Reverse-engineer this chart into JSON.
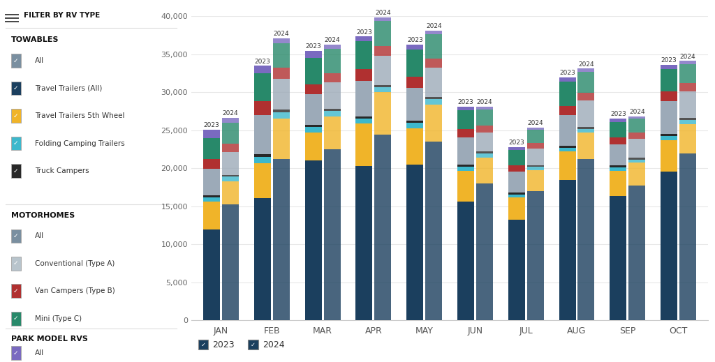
{
  "months": [
    "JAN",
    "FEB",
    "MAR",
    "APR",
    "MAY",
    "JUN",
    "JUL",
    "AUG",
    "SEP",
    "OCT"
  ],
  "segments": [
    {
      "name": "Travel Trailers (All)",
      "color": "#1b3f5e"
    },
    {
      "name": "Travel Trailers 5th Wheel",
      "color": "#f0b429"
    },
    {
      "name": "Folding Camping Trailers",
      "color": "#3db8cc"
    },
    {
      "name": "Truck Campers",
      "color": "#282828"
    },
    {
      "name": "Conventional (Type A)",
      "color": "#9caab8"
    },
    {
      "name": "Van Campers (Type B)",
      "color": "#b03030"
    },
    {
      "name": "Mini (Type C)",
      "color": "#28896a"
    },
    {
      "name": "Park Model RVs",
      "color": "#7a6ac0"
    }
  ],
  "data_2023": {
    "Travel Trailers (All)": [
      12000,
      16100,
      21050,
      20300,
      20500,
      15600,
      13200,
      18500,
      16400,
      19600
    ],
    "Travel Trailers 5th Wheel": [
      3600,
      4600,
      3700,
      5600,
      4800,
      4100,
      3000,
      3700,
      3300,
      4100
    ],
    "Folding Camping Trailers": [
      600,
      800,
      650,
      620,
      680,
      530,
      380,
      490,
      440,
      540
    ],
    "Truck Campers": [
      280,
      330,
      280,
      320,
      320,
      280,
      230,
      280,
      240,
      290
    ],
    "Conventional (Type A)": [
      3500,
      5200,
      4100,
      4700,
      4300,
      3600,
      2800,
      4000,
      2800,
      4300
    ],
    "Van Campers (Type B)": [
      1200,
      1800,
      1250,
      1550,
      1450,
      1050,
      820,
      1250,
      920,
      1250
    ],
    "Mini (Type C)": [
      2800,
      3700,
      3500,
      3600,
      3600,
      2500,
      1980,
      3200,
      1960,
      2950
    ],
    "Park Model RVs": [
      1100,
      950,
      950,
      650,
      650,
      480,
      380,
      580,
      480,
      570
    ]
  },
  "data_2024": {
    "Travel Trailers (All)": [
      15300,
      21200,
      22500,
      24400,
      23500,
      18000,
      17000,
      21200,
      17700,
      22000
    ],
    "Travel Trailers 5th Wheel": [
      3000,
      5300,
      4300,
      5600,
      4900,
      3450,
      2800,
      3500,
      3050,
      3800
    ],
    "Folding Camping Trailers": [
      600,
      900,
      720,
      660,
      710,
      510,
      400,
      510,
      410,
      560
    ],
    "Truck Campers": [
      250,
      340,
      290,
      300,
      300,
      250,
      200,
      250,
      220,
      275
    ],
    "Conventional (Type A)": [
      3000,
      4000,
      3500,
      3800,
      3800,
      2500,
      2200,
      3500,
      2500,
      3500
    ],
    "Van Campers (Type B)": [
      1100,
      1500,
      1200,
      1300,
      1250,
      920,
      720,
      1020,
      820,
      1100
    ],
    "Mini (Type C)": [
      2750,
      3200,
      3200,
      3300,
      3150,
      2150,
      1780,
      2700,
      1800,
      2450
    ],
    "Park Model RVs": [
      680,
      680,
      590,
      490,
      490,
      340,
      290,
      430,
      340,
      430
    ]
  },
  "ylim": [
    0,
    40000
  ],
  "yticks": [
    0,
    5000,
    10000,
    15000,
    20000,
    25000,
    30000,
    35000,
    40000
  ],
  "bar_width": 0.33,
  "background_color": "#ffffff",
  "grid_color": "#e8e8e8",
  "towables": [
    {
      "label": "All",
      "color": "#7a8fa0"
    },
    {
      "label": "Travel Trailers (All)",
      "color": "#1b3f5e"
    },
    {
      "label": "Travel Trailers 5th Wheel",
      "color": "#f0b429"
    },
    {
      "label": "Folding Camping Trailers",
      "color": "#3db8cc"
    },
    {
      "label": "Truck Campers",
      "color": "#282828"
    }
  ],
  "motorhomes": [
    {
      "label": "All",
      "color": "#7a8fa0"
    },
    {
      "label": "Conventional (Type A)",
      "color": "#b8c4cc"
    },
    {
      "label": "Van Campers (Type B)",
      "color": "#b03030"
    },
    {
      "label": "Mini (Type C)",
      "color": "#28896a"
    }
  ],
  "park_model": [
    {
      "label": "All",
      "color": "#7a6ac0"
    }
  ],
  "filter_title": "FILTER BY RV TYPE",
  "section_towables": "TOWABLES",
  "section_motorhomes": "MOTORHOMES",
  "section_park": "PARK MODEL RVS",
  "sep_color": "#dddddd",
  "label_color": "#333333",
  "section_color": "#111111"
}
